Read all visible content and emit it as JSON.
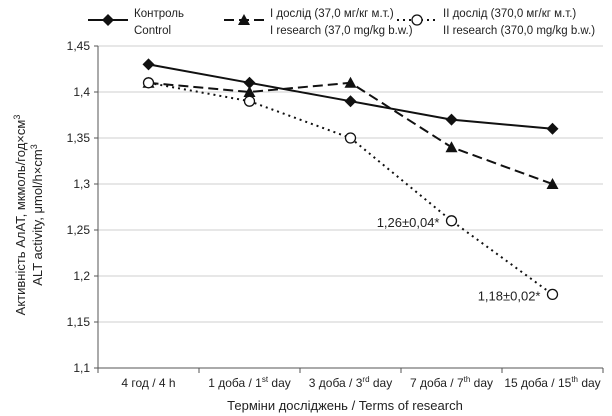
{
  "chart_data": {
    "type": "line",
    "categories": [
      "4 год / 4 h",
      "1 доба / 1st day",
      "3 доба / 3rd day",
      "7 доба / 7th day",
      "15 доба / 15th day"
    ],
    "category_parts": [
      {
        "main": "4 год / 4 h",
        "sup": "",
        "tail": ""
      },
      {
        "main": "1 доба / 1",
        "sup": "st",
        "tail": " day"
      },
      {
        "main": "3 доба / 3",
        "sup": "rd",
        "tail": " day"
      },
      {
        "main": "7 доба / 7",
        "sup": "th",
        "tail": " day"
      },
      {
        "main": "15 доба / 15",
        "sup": "th",
        "tail": " day"
      }
    ],
    "series": [
      {
        "name_line1": "Контроль",
        "name_line2": "Control",
        "values": [
          1.43,
          1.41,
          1.39,
          1.37,
          1.36
        ],
        "marker": "diamond",
        "line_style": "solid"
      },
      {
        "name_line1": "І дослід (37,0 мг/кг м.т.)",
        "name_line2": "I research (37,0 mg/kg b.w.)",
        "values": [
          1.41,
          1.4,
          1.41,
          1.34,
          1.3
        ],
        "marker": "triangle",
        "line_style": "dashed"
      },
      {
        "name_line1": "ІІ дослід (370,0 мг/кг м.т.)",
        "name_line2": "II research (370,0 mg/kg b.w.)",
        "values": [
          1.41,
          1.39,
          1.35,
          1.26,
          1.18
        ],
        "marker": "open-circle",
        "line_style": "dotted"
      }
    ],
    "annotations": [
      {
        "text": "1,26±0,04*",
        "series": 2,
        "index": 3
      },
      {
        "text": "1,18±0,02*",
        "series": 2,
        "index": 4
      }
    ],
    "y_ticks": [
      "1,1",
      "1,15",
      "1,2",
      "1,25",
      "1,3",
      "1,35",
      "1,4",
      "1,45"
    ],
    "ylim": [
      1.1,
      1.45
    ],
    "xlabel": "Терміни досліджень / Terms of research",
    "ylabel_line1": "Активність АлАТ, мкмоль/год×см",
    "ylabel_line1_sup": "3",
    "ylabel_line2": "ALT activity, μmol/h×cm",
    "ylabel_line2_sup": "3",
    "grid": "horizontal",
    "legend_position": "top"
  }
}
